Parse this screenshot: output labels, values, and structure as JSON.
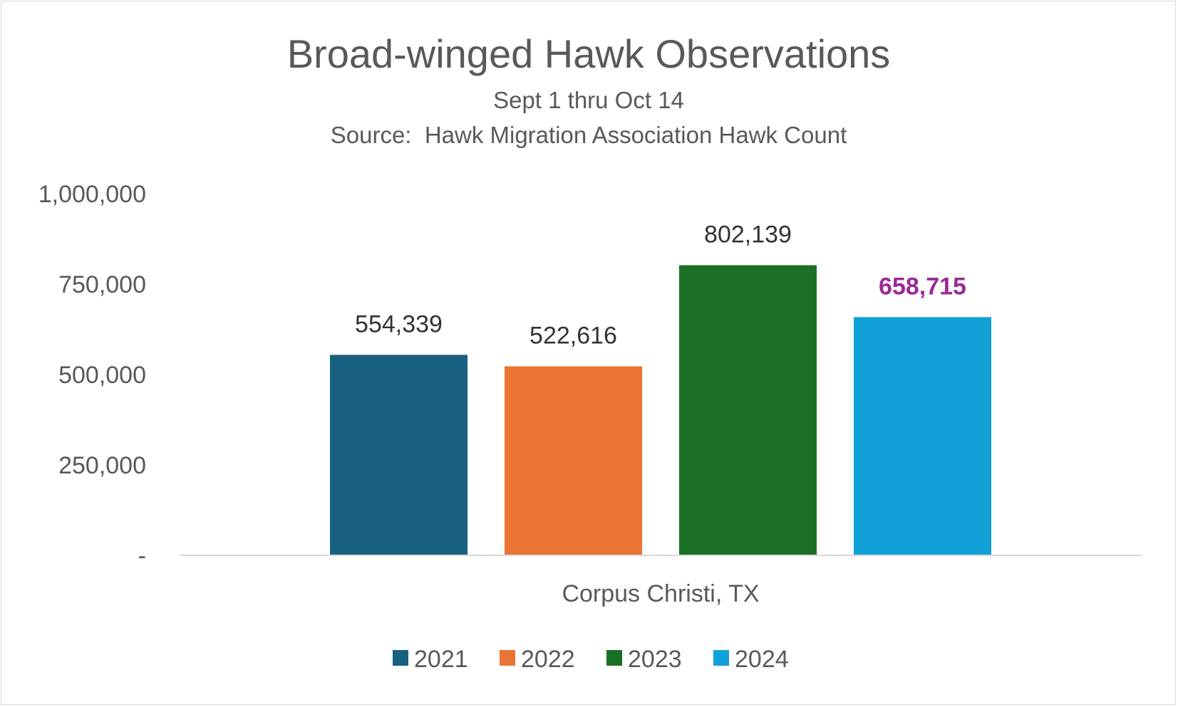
{
  "chart_data": {
    "type": "bar",
    "title": "Broad-winged Hawk Observations",
    "subtitle": [
      "Sept 1 thru Oct 14",
      "Source:  Hawk Migration Association Hawk Count"
    ],
    "xlabel": "",
    "ylabel": "",
    "categories": [
      "Corpus Christi, TX"
    ],
    "ylim": [
      0,
      1000000
    ],
    "yticks": [
      0,
      250000,
      500000,
      750000,
      1000000
    ],
    "ytick_labels": [
      "-",
      "250,000",
      "500,000",
      "750,000",
      "1,000,000"
    ],
    "grid": false,
    "legend_position": "bottom",
    "series": [
      {
        "name": "2021",
        "color": "#17607f",
        "values": [
          554339
        ],
        "label": "554,339",
        "label_color": "#333333",
        "label_bold": false
      },
      {
        "name": "2022",
        "color": "#e97434",
        "values": [
          522616
        ],
        "label": "522,616",
        "label_color": "#333333",
        "label_bold": false
      },
      {
        "name": "2023",
        "color": "#1c6f26",
        "values": [
          802139
        ],
        "label": "802,139",
        "label_color": "#333333",
        "label_bold": false
      },
      {
        "name": "2024",
        "color": "#12a0d8",
        "values": [
          658715
        ],
        "label": "658,715",
        "label_color": "#9b2a98",
        "label_bold": true
      }
    ]
  }
}
